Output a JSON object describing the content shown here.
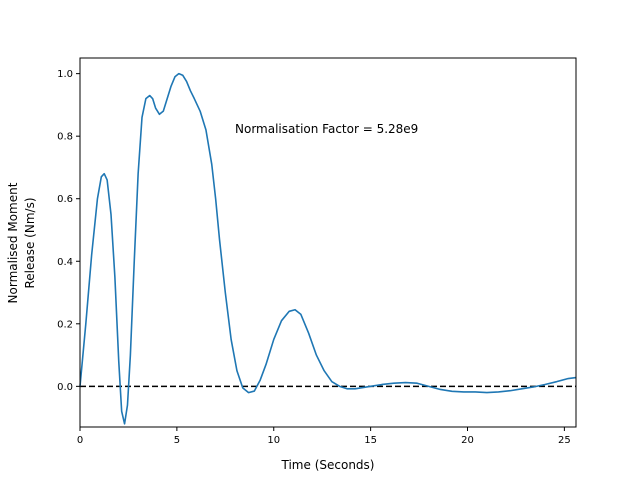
{
  "chart_data": {
    "type": "line",
    "xlabel": "Time (Seconds)",
    "ylabel": [
      "Normalised Moment",
      "Release (Nm/s)"
    ],
    "xlim": [
      0,
      25.6
    ],
    "ylim": [
      -0.13,
      1.05
    ],
    "xticks": [
      0,
      5,
      10,
      15,
      20,
      25
    ],
    "yticks": [
      0.0,
      0.2,
      0.4,
      0.6,
      0.8,
      1.0
    ],
    "xtick_labels": [
      "0",
      "5",
      "10",
      "15",
      "20",
      "25"
    ],
    "ytick_labels": [
      "0.0",
      "0.2",
      "0.4",
      "0.6",
      "0.8",
      "1.0"
    ],
    "annotation": "Normalisation Factor = 5.28e9",
    "grid": false,
    "reference_line": {
      "y": 0.0,
      "style": "dashed",
      "color": "#000000"
    },
    "series": [
      {
        "color": "#1f77b4",
        "x": [
          0,
          0.3,
          0.6,
          0.9,
          1.1,
          1.25,
          1.4,
          1.6,
          1.8,
          2.0,
          2.15,
          2.3,
          2.45,
          2.6,
          2.8,
          3.0,
          3.2,
          3.4,
          3.6,
          3.75,
          3.9,
          4.1,
          4.3,
          4.5,
          4.7,
          4.9,
          5.1,
          5.3,
          5.5,
          5.7,
          5.9,
          6.2,
          6.5,
          6.8,
          7.0,
          7.2,
          7.5,
          7.8,
          8.1,
          8.4,
          8.7,
          9.0,
          9.3,
          9.6,
          10.0,
          10.4,
          10.8,
          11.1,
          11.4,
          11.8,
          12.2,
          12.6,
          13.0,
          13.4,
          13.8,
          14.2,
          14.6,
          15.0,
          15.6,
          16.2,
          16.8,
          17.4,
          18.0,
          18.6,
          19.2,
          19.8,
          20.4,
          21.0,
          21.6,
          22.2,
          22.8,
          23.4,
          24.0,
          24.6,
          25.2,
          25.6
        ],
        "y": [
          0.0,
          0.2,
          0.42,
          0.6,
          0.67,
          0.68,
          0.66,
          0.55,
          0.35,
          0.08,
          -0.08,
          -0.12,
          -0.06,
          0.1,
          0.4,
          0.68,
          0.86,
          0.92,
          0.93,
          0.92,
          0.89,
          0.87,
          0.88,
          0.92,
          0.96,
          0.99,
          1.0,
          0.995,
          0.975,
          0.945,
          0.92,
          0.88,
          0.82,
          0.71,
          0.6,
          0.47,
          0.3,
          0.15,
          0.05,
          -0.005,
          -0.02,
          -0.015,
          0.02,
          0.07,
          0.15,
          0.21,
          0.24,
          0.245,
          0.23,
          0.17,
          0.1,
          0.05,
          0.015,
          0.0,
          -0.008,
          -0.008,
          -0.004,
          0.0,
          0.006,
          0.01,
          0.012,
          0.01,
          0.0,
          -0.01,
          -0.016,
          -0.018,
          -0.018,
          -0.02,
          -0.018,
          -0.014,
          -0.008,
          -0.002,
          0.006,
          0.015,
          0.025,
          0.028
        ]
      }
    ]
  }
}
